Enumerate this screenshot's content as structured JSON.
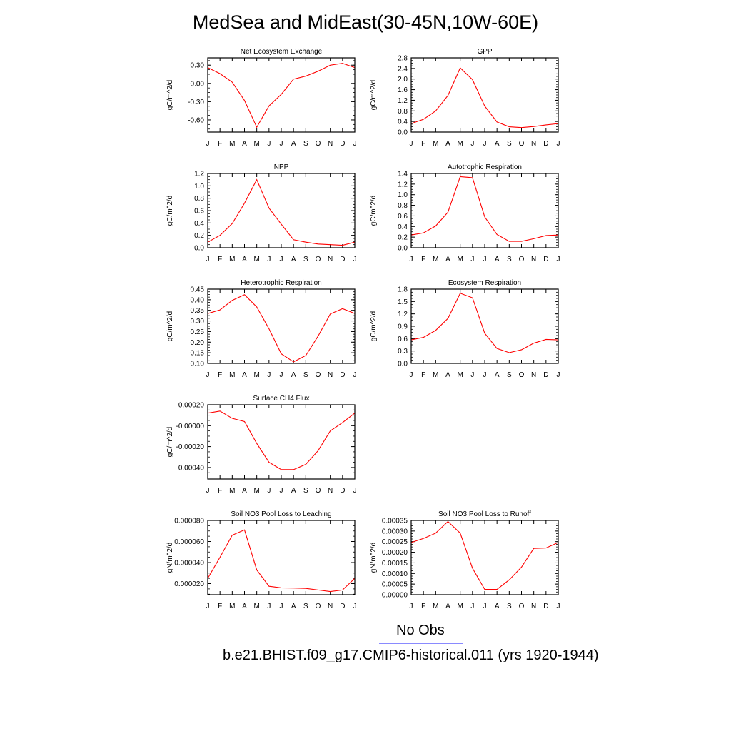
{
  "figure": {
    "title": "MedSea and MidEast(30-45N,10W-60E)",
    "legend": [
      {
        "label": "No Obs",
        "color": "#8a8aff"
      },
      {
        "label": "b.e21.BHIST.f09_g17.CMIP6-historical.011 (yrs 1920-1944)",
        "color": "#ff0000"
      }
    ]
  },
  "chart_data": [
    {
      "type": "line",
      "title": "Net Ecosystem Exchange",
      "ylabel": "gC/m^2/d",
      "categories": [
        "J",
        "F",
        "M",
        "A",
        "M",
        "J",
        "J",
        "A",
        "S",
        "O",
        "N",
        "D",
        "J"
      ],
      "ylim": [
        -0.8,
        0.42
      ],
      "yticks": [
        0.3,
        0.0,
        -0.3,
        -0.6
      ],
      "ytick_labels": [
        "0.30",
        "0.00",
        "-0.30",
        "-0.60"
      ],
      "series": [
        {
          "values": [
            0.26,
            0.16,
            0.02,
            -0.28,
            -0.72,
            -0.37,
            -0.18,
            0.07,
            0.12,
            0.2,
            0.3,
            0.33,
            0.26
          ],
          "color": "#ff0000"
        }
      ]
    },
    {
      "type": "line",
      "title": "GPP",
      "ylabel": "gC/m^2/d",
      "categories": [
        "J",
        "F",
        "M",
        "A",
        "M",
        "J",
        "J",
        "A",
        "S",
        "O",
        "N",
        "D",
        "J"
      ],
      "ylim": [
        0.0,
        2.8
      ],
      "yticks": [
        0.0,
        0.4,
        0.8,
        1.2,
        1.6,
        2.0,
        2.4,
        2.8
      ],
      "ytick_labels": [
        "0.0",
        "0.4",
        "0.8",
        "1.2",
        "1.6",
        "2.0",
        "2.4",
        "2.8"
      ],
      "series": [
        {
          "values": [
            0.32,
            0.48,
            0.8,
            1.38,
            2.42,
            1.98,
            0.98,
            0.38,
            0.2,
            0.17,
            0.21,
            0.27,
            0.32
          ],
          "color": "#ff0000"
        }
      ]
    },
    {
      "type": "line",
      "title": "NPP",
      "ylabel": "gC/m^2/d",
      "categories": [
        "J",
        "F",
        "M",
        "A",
        "M",
        "J",
        "J",
        "A",
        "S",
        "O",
        "N",
        "D",
        "J"
      ],
      "ylim": [
        0.0,
        1.2
      ],
      "yticks": [
        0.0,
        0.2,
        0.4,
        0.6,
        0.8,
        1.0,
        1.2
      ],
      "ytick_labels": [
        "0.0",
        "0.2",
        "0.4",
        "0.6",
        "0.8",
        "1.0",
        "1.2"
      ],
      "series": [
        {
          "values": [
            0.09,
            0.2,
            0.39,
            0.72,
            1.1,
            0.64,
            0.38,
            0.13,
            0.09,
            0.06,
            0.05,
            0.04,
            0.09
          ],
          "color": "#ff0000"
        }
      ]
    },
    {
      "type": "line",
      "title": "Autotrophic Respiration",
      "ylabel": "gC/m^2/d",
      "categories": [
        "J",
        "F",
        "M",
        "A",
        "M",
        "J",
        "J",
        "A",
        "S",
        "O",
        "N",
        "D",
        "J"
      ],
      "ylim": [
        0.0,
        1.4
      ],
      "yticks": [
        0.0,
        0.2,
        0.4,
        0.6,
        0.8,
        1.0,
        1.2,
        1.4
      ],
      "ytick_labels": [
        "0.0",
        "0.2",
        "0.4",
        "0.6",
        "0.8",
        "1.0",
        "1.2",
        "1.4"
      ],
      "series": [
        {
          "values": [
            0.24,
            0.28,
            0.41,
            0.67,
            1.34,
            1.32,
            0.58,
            0.25,
            0.12,
            0.12,
            0.17,
            0.23,
            0.24
          ],
          "color": "#ff0000"
        }
      ]
    },
    {
      "type": "line",
      "title": "Heterotrophic Respiration",
      "ylabel": "gC/m^2/d",
      "categories": [
        "J",
        "F",
        "M",
        "A",
        "M",
        "J",
        "J",
        "A",
        "S",
        "O",
        "N",
        "D",
        "J"
      ],
      "ylim": [
        0.1,
        0.45
      ],
      "yticks": [
        0.1,
        0.15,
        0.2,
        0.25,
        0.3,
        0.35,
        0.4,
        0.45
      ],
      "ytick_labels": [
        "0.10",
        "0.15",
        "0.20",
        "0.25",
        "0.30",
        "0.35",
        "0.40",
        "0.45"
      ],
      "series": [
        {
          "values": [
            0.335,
            0.352,
            0.397,
            0.424,
            0.366,
            0.263,
            0.145,
            0.107,
            0.137,
            0.228,
            0.333,
            0.358,
            0.335
          ],
          "color": "#ff0000"
        }
      ]
    },
    {
      "type": "line",
      "title": "Ecosystem Respiration",
      "ylabel": "gC/m^2/d",
      "categories": [
        "J",
        "F",
        "M",
        "A",
        "M",
        "J",
        "J",
        "A",
        "S",
        "O",
        "N",
        "D",
        "J"
      ],
      "ylim": [
        0.0,
        1.8
      ],
      "yticks": [
        0.0,
        0.3,
        0.6,
        0.9,
        1.2,
        1.5,
        1.8
      ],
      "ytick_labels": [
        "0.0",
        "0.3",
        "0.6",
        "0.9",
        "1.2",
        "1.5",
        "1.8"
      ],
      "series": [
        {
          "values": [
            0.57,
            0.63,
            0.8,
            1.09,
            1.7,
            1.59,
            0.73,
            0.36,
            0.26,
            0.33,
            0.49,
            0.58,
            0.57
          ],
          "color": "#ff0000"
        }
      ]
    },
    {
      "type": "line",
      "title": "Surface CH4 Flux",
      "ylabel": "gC/m^2/d",
      "categories": [
        "J",
        "F",
        "M",
        "A",
        "M",
        "J",
        "J",
        "A",
        "S",
        "O",
        "N",
        "D",
        "J"
      ],
      "ylim": [
        -0.00051,
        0.0002
      ],
      "yticks": [
        0.0002,
        0.0,
        -0.0002,
        -0.0004
      ],
      "ytick_labels": [
        "0.00020",
        "-0.00000",
        "-0.00020",
        "-0.00040"
      ],
      "series": [
        {
          "values": [
            0.00012,
            0.00014,
            7e-05,
            4e-05,
            -0.00017,
            -0.00035,
            -0.00042,
            -0.00042,
            -0.00037,
            -0.00024,
            -5e-05,
            3e-05,
            0.00012
          ],
          "color": "#ff0000"
        }
      ]
    },
    {
      "type": "line",
      "title": "Soil NO3 Pool Loss to Leaching",
      "ylabel": "gN/m^2/d",
      "categories": [
        "J",
        "F",
        "M",
        "A",
        "M",
        "J",
        "J",
        "A",
        "S",
        "O",
        "N",
        "D",
        "J"
      ],
      "ylim": [
        9.5e-06,
        8e-05
      ],
      "yticks": [
        8e-05,
        6e-05,
        4e-05,
        2e-05
      ],
      "ytick_labels": [
        "0.000080",
        "0.000060",
        "0.000040",
        "0.000020"
      ],
      "series": [
        {
          "values": [
            2.5e-05,
            4.5e-05,
            6.6e-05,
            7.1e-05,
            3.3e-05,
            1.75e-05,
            1.6e-05,
            1.58e-05,
            1.55e-05,
            1.4e-05,
            1.25e-05,
            1.4e-05,
            2.5e-05
          ],
          "color": "#ff0000"
        }
      ]
    },
    {
      "type": "line",
      "title": "Soil NO3 Pool Loss to Runoff",
      "ylabel": "gN/m^2/d",
      "categories": [
        "J",
        "F",
        "M",
        "A",
        "M",
        "J",
        "J",
        "A",
        "S",
        "O",
        "N",
        "D",
        "J"
      ],
      "ylim": [
        0.0,
        0.00035
      ],
      "yticks": [
        0.0,
        5e-05,
        0.0001,
        0.00015,
        0.0002,
        0.00025,
        0.0003,
        0.00035
      ],
      "ytick_labels": [
        "0.00000",
        "0.00005",
        "0.00010",
        "0.00015",
        "0.00020",
        "0.00025",
        "0.00030",
        "0.00035"
      ],
      "series": [
        {
          "values": [
            0.000246,
            0.000265,
            0.00029,
            0.000345,
            0.00029,
            0.000125,
            2.5e-05,
            2.5e-05,
            7e-05,
            0.00013,
            0.000218,
            0.00022,
            0.000246
          ],
          "color": "#ff0000"
        }
      ]
    }
  ]
}
